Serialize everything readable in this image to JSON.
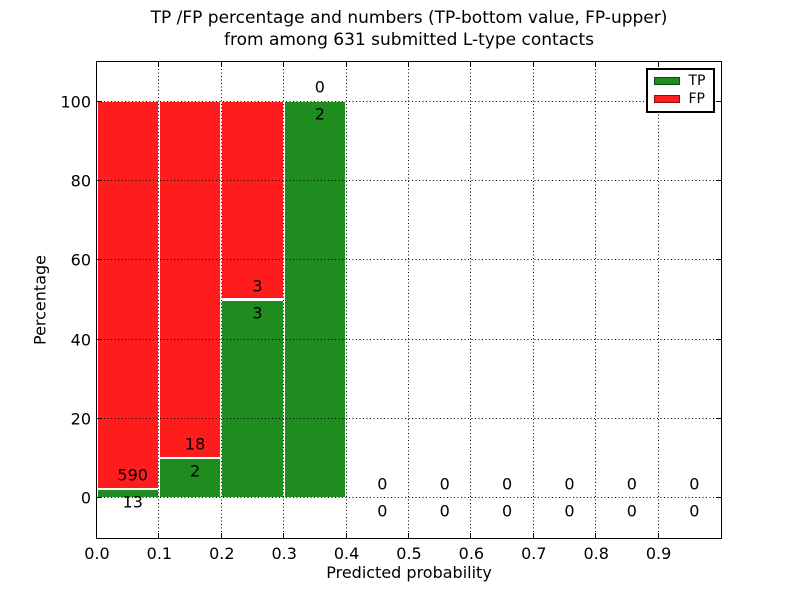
{
  "figure": {
    "title_line1": "TP /FP percentage and numbers (TP-bottom value, FP-upper)",
    "title_line2": "from among 631 submitted L-type contacts"
  },
  "chart_data": {
    "type": "bar",
    "stacked": true,
    "title": "TP /FP percentage and numbers (TP-bottom value, FP-upper) from among 631 submitted L-type contacts",
    "xlabel": "Predicted probability",
    "ylabel": "Percentage",
    "xlim": [
      0.0,
      1.0
    ],
    "ylim": [
      -10,
      110
    ],
    "xticks": [
      0.0,
      0.1,
      0.2,
      0.3,
      0.4,
      0.5,
      0.6,
      0.7,
      0.8,
      0.9
    ],
    "xtick_labels": [
      "0.0",
      "0.1",
      "0.2",
      "0.3",
      "0.4",
      "0.5",
      "0.6",
      "0.7",
      "0.8",
      "0.9"
    ],
    "yticks": [
      0,
      20,
      40,
      60,
      80,
      100
    ],
    "ytick_labels": [
      "0",
      "20",
      "40",
      "60",
      "80",
      "100"
    ],
    "grid": true,
    "grid_style": "dotted",
    "legend": {
      "position": "upper right",
      "entries": [
        {
          "label": "TP",
          "color": "#1e8c1e"
        },
        {
          "label": "FP",
          "color": "#ff1c1c"
        }
      ]
    },
    "colors": {
      "tp": "#1e8c1e",
      "fp": "#ff1c1c",
      "bar_edge": "#ffffff"
    },
    "bins": [
      {
        "range": [
          0.0,
          0.1
        ],
        "tp_count": 13,
        "fp_count": 590,
        "tp_pct": 2.16,
        "fp_pct": 97.84
      },
      {
        "range": [
          0.1,
          0.2
        ],
        "tp_count": 2,
        "fp_count": 18,
        "tp_pct": 10,
        "fp_pct": 90
      },
      {
        "range": [
          0.2,
          0.3
        ],
        "tp_count": 3,
        "fp_count": 3,
        "tp_pct": 50,
        "fp_pct": 50
      },
      {
        "range": [
          0.3,
          0.4
        ],
        "tp_count": 2,
        "fp_count": 0,
        "tp_pct": 100,
        "fp_pct": 0
      },
      {
        "range": [
          0.4,
          0.5
        ],
        "tp_count": 0,
        "fp_count": 0,
        "tp_pct": 0,
        "fp_pct": 0
      },
      {
        "range": [
          0.5,
          0.6
        ],
        "tp_count": 0,
        "fp_count": 0,
        "tp_pct": 0,
        "fp_pct": 0
      },
      {
        "range": [
          0.6,
          0.7
        ],
        "tp_count": 0,
        "fp_count": 0,
        "tp_pct": 0,
        "fp_pct": 0
      },
      {
        "range": [
          0.7,
          0.8
        ],
        "tp_count": 0,
        "fp_count": 0,
        "tp_pct": 0,
        "fp_pct": 0
      },
      {
        "range": [
          0.8,
          0.9
        ],
        "tp_count": 0,
        "fp_count": 0,
        "tp_pct": 0,
        "fp_pct": 0
      },
      {
        "range": [
          0.9,
          1.0
        ],
        "tp_count": 0,
        "fp_count": 0,
        "tp_pct": 0,
        "fp_pct": 0
      }
    ]
  }
}
